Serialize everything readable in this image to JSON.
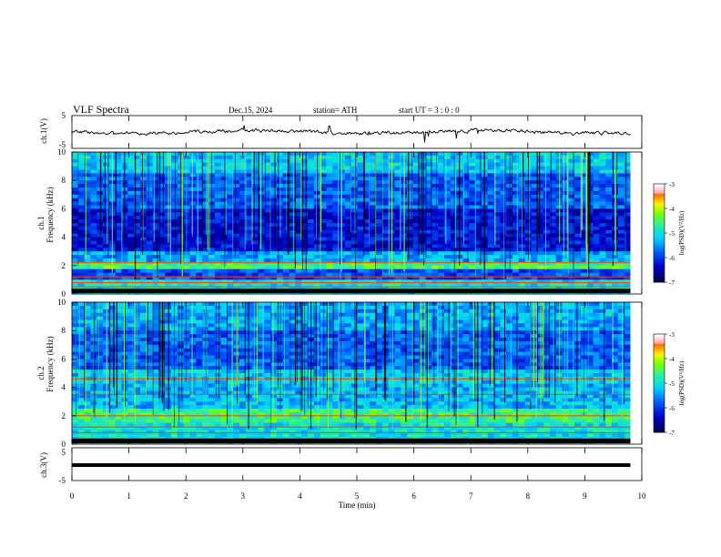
{
  "header": {
    "title": "VLF  Spectra",
    "date": "Dec.15, 2024",
    "station": "station= ATH",
    "start": "start  UT  =    3  : 0   : 0"
  },
  "chart_data": [
    {
      "type": "line",
      "name": "ch1-waveform",
      "ylabel": "ch.1(V)",
      "xlim": [
        0,
        10
      ],
      "ylim": [
        -5,
        5
      ],
      "yticks": [
        "5",
        "-5"
      ],
      "x_data_end": 9.8,
      "description_of_signal": "noisy trace near 0 V with occasional spikes"
    },
    {
      "type": "heatmap",
      "name": "ch1-spectrogram",
      "ylabel_top": "ch.1",
      "ylabel": "Frequency  (kHz)",
      "xlim": [
        0,
        10
      ],
      "ylim": [
        0,
        10
      ],
      "yticks": [
        "0",
        "2",
        "4",
        "6",
        "8",
        "10"
      ],
      "x_data_end": 9.8,
      "bands_khz": [
        0.2,
        0.5,
        0.8,
        1.2,
        2.2
      ],
      "colorbar": {
        "label": "log(PSD)(V²/Hz)",
        "range": [
          -7,
          -3
        ],
        "ticks": [
          "-3",
          "-4",
          "-5",
          "-6",
          "-7"
        ]
      }
    },
    {
      "type": "heatmap",
      "name": "ch2-spectrogram",
      "ylabel_top": "ch.2",
      "ylabel": "Frequency  (kHz)",
      "xlim": [
        0,
        10
      ],
      "ylim": [
        0,
        10
      ],
      "yticks": [
        "0",
        "2",
        "4",
        "6",
        "8",
        "10"
      ],
      "x_data_end": 9.8,
      "bands_khz": [
        0.4,
        0.8,
        1.2,
        2.0,
        3.5,
        4.6
      ],
      "colorbar": {
        "label": "log(PSD)(V²/Hz)",
        "range": [
          -7,
          -3
        ],
        "ticks": [
          "-3",
          "-4",
          "-5",
          "-6",
          "-7"
        ]
      }
    },
    {
      "type": "line",
      "name": "ch3-waveform",
      "ylabel": "ch.3(V)",
      "xlim": [
        0,
        10
      ],
      "ylim": [
        -5,
        5
      ],
      "yticks": [
        "5",
        "-5"
      ],
      "x_data_end": 9.8,
      "xlabel": "Time  (min)",
      "xticks": [
        "0",
        "1",
        "2",
        "3",
        "4",
        "5",
        "6",
        "7",
        "8",
        "9",
        "10"
      ],
      "description_of_signal": "thick flat trace at about -1.2 V"
    }
  ]
}
